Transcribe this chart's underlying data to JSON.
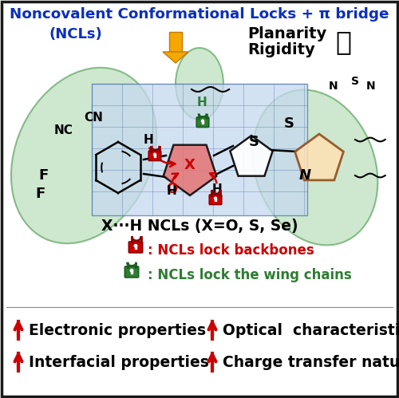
{
  "title_line1": "Noncovalent Conformational Locks + π bridge",
  "title_ncls": "(NCLs)",
  "planarity": "Planarity",
  "rigidity": "Rigidity",
  "subtitle_x_h": "X···H NCLs (X=O, S, Se)",
  "lock_red_text": ": NCLs lock backbones",
  "lock_green_text": ": NCLs lock the wing chains",
  "prop1_arrow": "↑",
  "prop1_text": "Electronic properties",
  "prop2_arrow": "↑",
  "prop2_text": "Optical  characteristics",
  "prop3_arrow": "↑",
  "prop3_text": "Interfacial properties",
  "prop4_arrow": "↑",
  "prop4_text": "Charge transfer nature",
  "bg_color": "#ffffff",
  "border_color": "#1a1a1a",
  "title_color": "#0c2fbd",
  "red_color": "#cc0000",
  "green_color": "#2e7d32",
  "black_color": "#000000",
  "arrow_yellow_body": "#f5a800",
  "arrow_yellow_dark": "#c47a00",
  "solar_bg": "#c5d9ef",
  "solar_line": "#5577aa",
  "leaf_fill": "#a5d6a7",
  "leaf_edge": "#388e3c",
  "mol_red_fill": "#e57373",
  "right_mol_fill": "#ffe0b2",
  "nc_label": "NC",
  "cn_label": "CN",
  "f_label": "F",
  "s_label": "S",
  "n_label": "N",
  "x_label": "X",
  "h_label": "H",
  "o_label": "O",
  "n_s_label": "N",
  "top_s1": "S",
  "top_s2": "N",
  "top_n": "N"
}
